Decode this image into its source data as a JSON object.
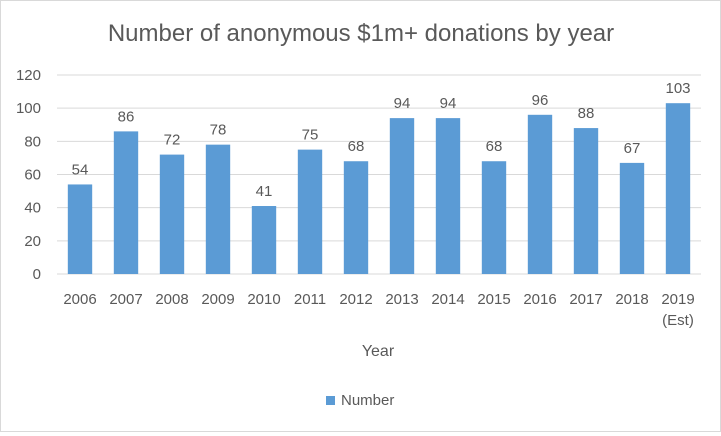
{
  "chart_data": {
    "type": "bar",
    "title": "Number of anonymous $1m+ donations by year",
    "xlabel": "Year",
    "ylabel": "",
    "categories": [
      "2006",
      "2007",
      "2008",
      "2009",
      "2010",
      "2011",
      "2012",
      "2013",
      "2014",
      "2015",
      "2016",
      "2017",
      "2018",
      "2019 (Est)"
    ],
    "category_lines": [
      [
        "2006"
      ],
      [
        "2007"
      ],
      [
        "2008"
      ],
      [
        "2009"
      ],
      [
        "2010"
      ],
      [
        "2011"
      ],
      [
        "2012"
      ],
      [
        "2013"
      ],
      [
        "2014"
      ],
      [
        "2015"
      ],
      [
        "2016"
      ],
      [
        "2017"
      ],
      [
        "2018"
      ],
      [
        "2019",
        "(Est)"
      ]
    ],
    "series": [
      {
        "name": "Number",
        "values": [
          54,
          86,
          72,
          78,
          41,
          75,
          68,
          94,
          94,
          68,
          96,
          88,
          67,
          103
        ],
        "color": "#5b9bd5"
      }
    ],
    "ylim": [
      0,
      120
    ],
    "yticks": [
      0,
      20,
      40,
      60,
      80,
      100,
      120
    ],
    "grid": true,
    "gridline_color": "#d9d9d9",
    "data_labels": true,
    "legend": "bottom-center"
  }
}
